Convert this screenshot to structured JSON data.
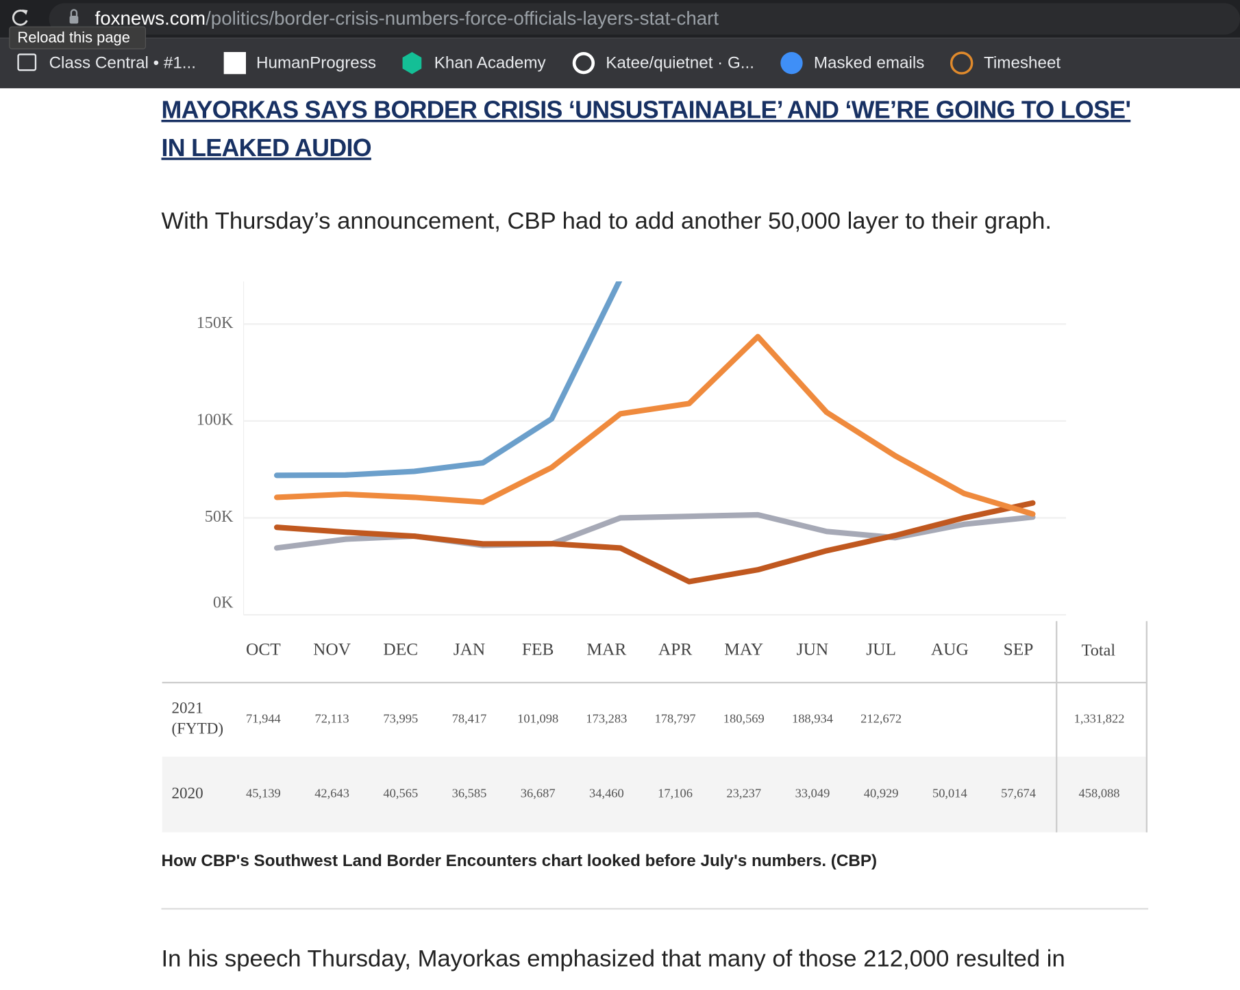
{
  "browser": {
    "url": {
      "domain": "foxnews.com",
      "path": "/politics/border-crisis-numbers-force-officials-layers-stat-chart"
    },
    "tooltip": "Reload this page",
    "bookmarks": [
      "Class Central • #1...",
      "HumanProgress",
      "Khan Academy",
      "Katee/quietnet · G...",
      "Masked emails",
      "Timesheet"
    ]
  },
  "article": {
    "headline": "MAYORKAS SAYS BORDER CRISIS ‘UNSUSTAINABLE’ AND ‘WE’RE GOING TO LOSE' IN LEAKED AUDIO",
    "paragraph_1": "With Thursday’s announcement, CBP had to add another 50,000 layer to their graph.",
    "caption": "How CBP's Southwest Land Border Encounters chart looked before July's numbers. (CBP)",
    "paragraph_2": "In his speech Thursday, Mayorkas emphasized that many of those 212,000 resulted in"
  },
  "chart_data": {
    "type": "line",
    "categories": [
      "OCT",
      "NOV",
      "DEC",
      "JAN",
      "FEB",
      "MAR",
      "APR",
      "MAY",
      "JUN",
      "JUL",
      "AUG",
      "SEP"
    ],
    "series": [
      {
        "color": "#6b9fcb",
        "values": [
          71944,
          72113,
          73995,
          78417,
          101098,
          173283,
          178797,
          180569,
          188934,
          212672,
          null,
          null
        ]
      },
      {
        "color": "#ef8a3d",
        "values": [
          60600,
          62200,
          60600,
          58100,
          76000,
          103700,
          109000,
          143500,
          104500,
          82000,
          62600,
          52000
        ]
      },
      {
        "color": "#c0581f",
        "values": [
          45139,
          42643,
          40565,
          36585,
          36687,
          34460,
          17106,
          23237,
          33049,
          40929,
          50014,
          57674
        ]
      },
      {
        "color": "#a6a9b6",
        "values": [
          34500,
          39000,
          40600,
          35800,
          36600,
          50000,
          50800,
          51600,
          43000,
          39800,
          46700,
          50400
        ]
      }
    ],
    "ylim": [
      0,
      172000
    ],
    "yticks": [
      {
        "value": 0,
        "label": "0K"
      },
      {
        "value": 50000,
        "label": "50K"
      },
      {
        "value": 100000,
        "label": "100K"
      },
      {
        "value": 150000,
        "label": "150K"
      }
    ],
    "grid": true
  },
  "table": {
    "total_header": "Total",
    "rows": [
      {
        "label": [
          "2021",
          "(FYTD)"
        ],
        "cells": [
          "71,944",
          "72,113",
          "73,995",
          "78,417",
          "101,098",
          "173,283",
          "178,797",
          "180,569",
          "188,934",
          "212,672",
          null,
          null
        ],
        "total": "1,331,822"
      },
      {
        "label": [
          "2020"
        ],
        "cells": [
          "45,139",
          "42,643",
          "40,565",
          "36,585",
          "36,687",
          "34,460",
          "17,106",
          "23,237",
          "33,049",
          "40,929",
          "50,014",
          "57,674"
        ],
        "total": "458,088"
      }
    ]
  }
}
